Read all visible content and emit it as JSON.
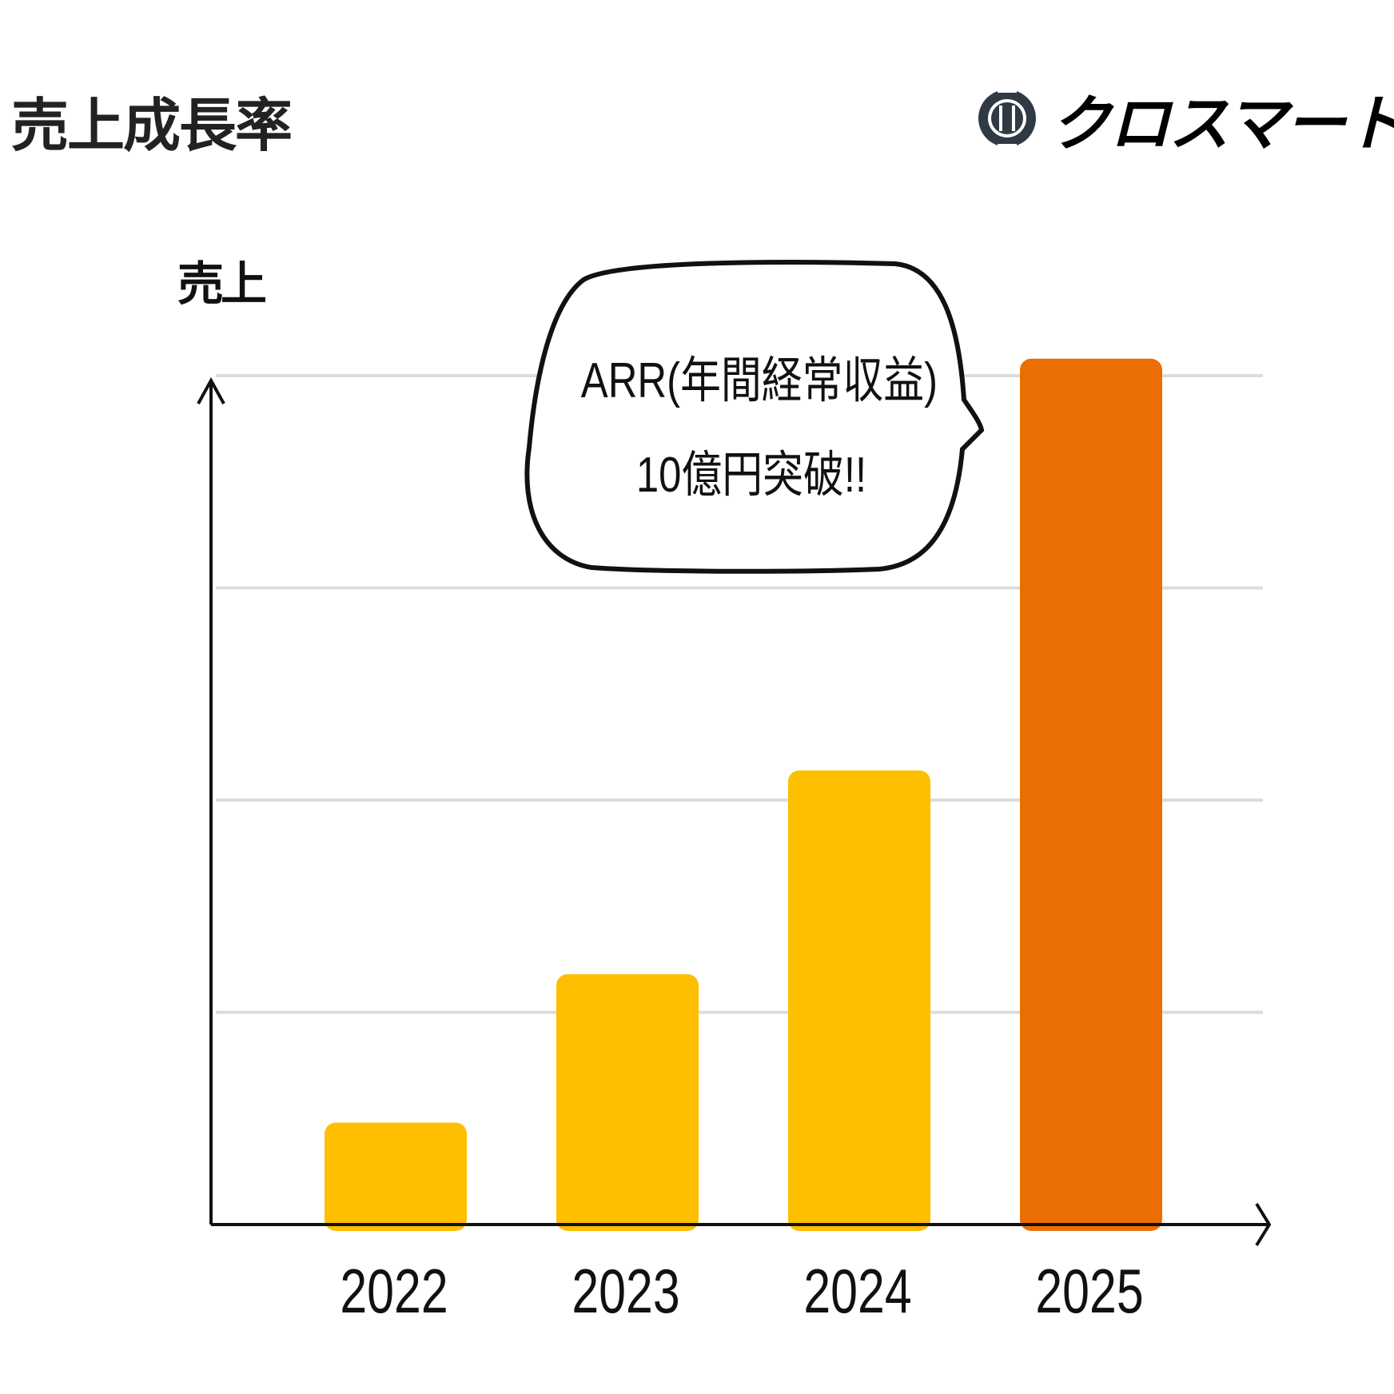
{
  "header": {
    "title": "売上成長率",
    "brand_name": "クロスマート"
  },
  "annotation": {
    "line1": "ARR(年間経常収益)",
    "line2": "10億円突破!!"
  },
  "colors": {
    "bar": "#fdbf00",
    "bar_highlight": "#ea6e03",
    "gridline": "#dcdcdc",
    "axis": "#111111",
    "logo_dark": "#2f3a44"
  },
  "chart_data": {
    "type": "bar",
    "title": "売上成長率",
    "ylabel": "売上",
    "xlabel": "",
    "categories": [
      "2022",
      "2023",
      "2024",
      "2025"
    ],
    "values": [
      1.2,
      2.95,
      5.35,
      10.2
    ],
    "ylim": [
      0,
      10
    ],
    "highlight_index": 3,
    "grid": true,
    "gridlines": [
      2.5,
      5,
      7.5,
      10
    ],
    "y_tick_labels_shown": false
  }
}
